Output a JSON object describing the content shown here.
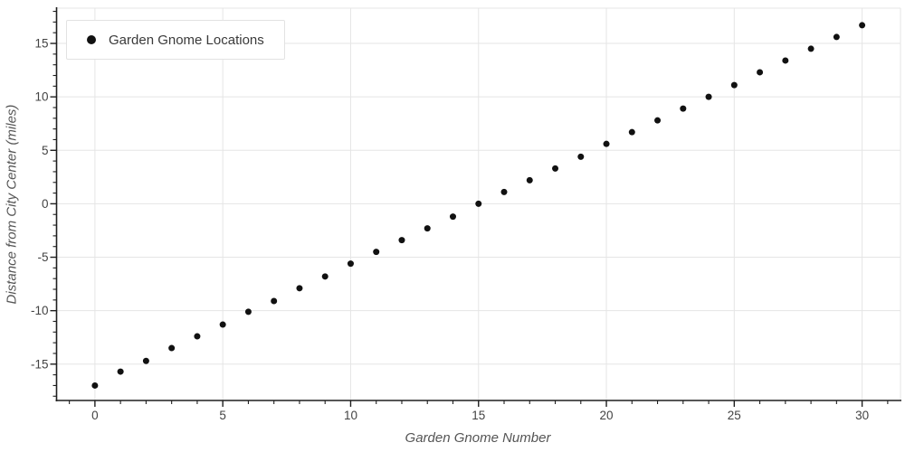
{
  "chart_data": {
    "type": "scatter",
    "title": "",
    "legend_label": "Garden Gnome Locations",
    "legend_position": "top-left",
    "xlabel": "Garden Gnome Number",
    "ylabel": "Distance from City Center (miles)",
    "x": [
      0,
      1,
      2,
      3,
      4,
      5,
      6,
      7,
      8,
      9,
      10,
      11,
      12,
      13,
      14,
      15,
      16,
      17,
      18,
      19,
      20,
      21,
      22,
      23,
      24,
      25,
      26,
      27,
      28,
      29,
      30
    ],
    "y": [
      -17.0,
      -15.7,
      -14.7,
      -13.5,
      -12.4,
      -11.3,
      -10.1,
      -9.1,
      -7.9,
      -6.8,
      -5.6,
      -4.5,
      -3.4,
      -2.3,
      -1.2,
      0.0,
      1.1,
      2.2,
      3.3,
      4.4,
      5.6,
      6.7,
      7.8,
      8.9,
      10.0,
      11.1,
      12.3,
      13.4,
      14.5,
      15.6,
      16.7
    ],
    "x_ticks": [
      0,
      5,
      10,
      15,
      20,
      25,
      30
    ],
    "y_ticks": [
      -15,
      -10,
      -5,
      0,
      5,
      10,
      15
    ],
    "xlim": [
      -1.5,
      31.5
    ],
    "ylim": [
      -18.4,
      18.3
    ],
    "minor_tick_step": 1,
    "grid": true,
    "colors": {
      "marker": "#111111",
      "grid": "#e5e5e5",
      "plot_border": "#e5e5e5",
      "spine": "#1f1f1f",
      "tick_label": "#434343",
      "axis_title": "#555555",
      "legend_text": "#3a3a3a",
      "legend_border": "#e2e2e2",
      "background": "#ffffff"
    }
  }
}
